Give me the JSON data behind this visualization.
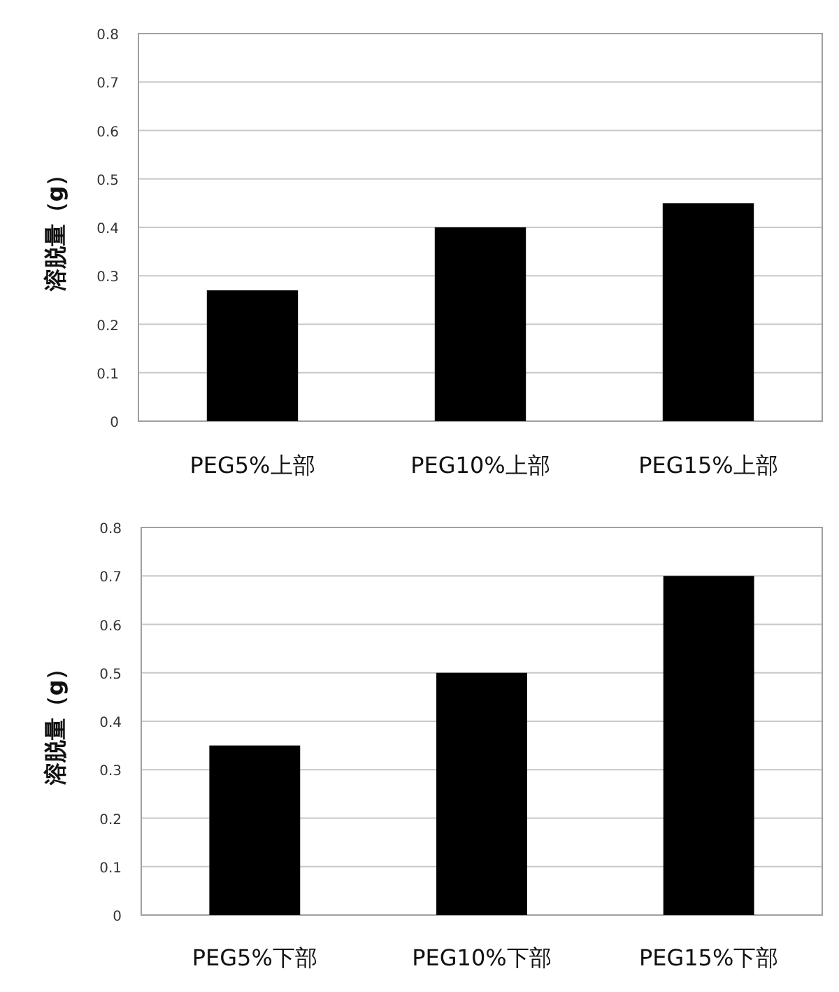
{
  "chart_data": [
    {
      "type": "bar",
      "ylabel": "溶脱量（g）",
      "categories": [
        "PEG5%上部",
        "PEG10%上部",
        "PEG15%上部"
      ],
      "values": [
        0.27,
        0.4,
        0.45
      ],
      "color": "#000000",
      "ylim": [
        0,
        0.8
      ],
      "yticks": [
        0,
        0.1,
        0.2,
        0.3,
        0.4,
        0.5,
        0.6,
        0.7,
        0.8
      ],
      "grid": "y"
    },
    {
      "type": "bar",
      "ylabel": "溶脱量（g）",
      "categories": [
        "PEG5%下部",
        "PEG10%下部",
        "PEG15%下部"
      ],
      "values": [
        0.35,
        0.5,
        0.7
      ],
      "color": "#000000",
      "ylim": [
        0,
        0.8
      ],
      "yticks": [
        0,
        0.1,
        0.2,
        0.3,
        0.4,
        0.5,
        0.6,
        0.7,
        0.8
      ],
      "grid": "y"
    }
  ]
}
